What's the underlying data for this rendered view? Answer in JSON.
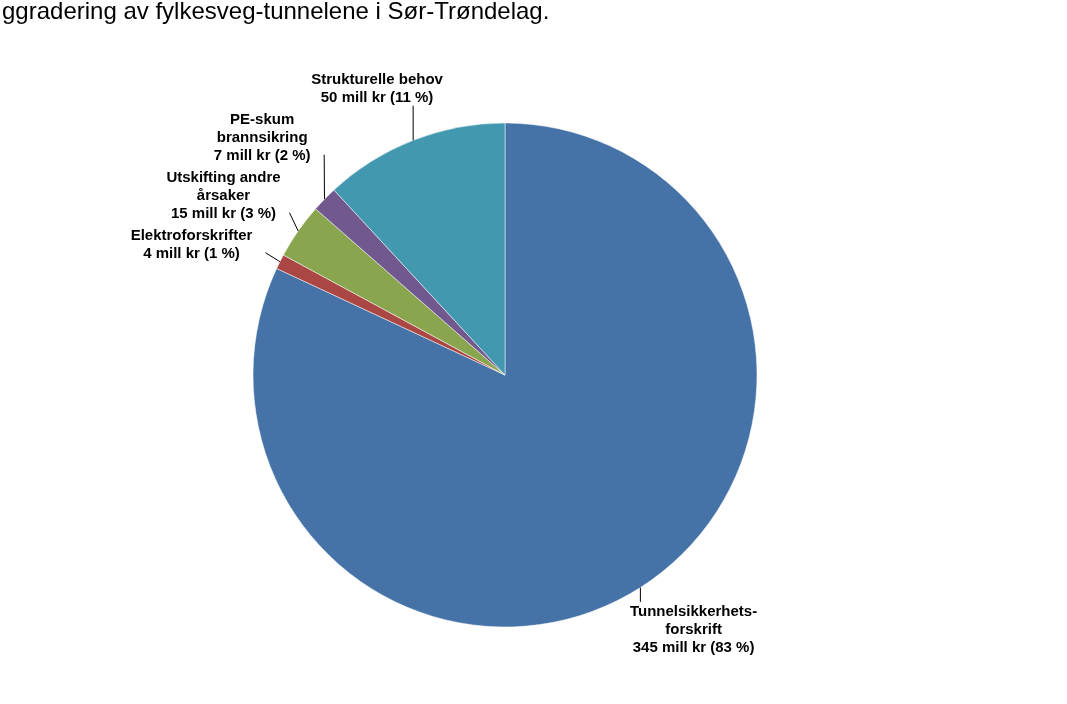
{
  "chart_data": {
    "type": "pie",
    "title": "ggradering av fylkesveg-tunnelene i Sør-Trøndelag.",
    "categories": [
      "Tunnelsikkerhets-forskrift",
      "Elektroforskrifter",
      "Utskifting andre årsaker",
      "PE-skum brannsikring",
      "Strukturelle behov"
    ],
    "values": [
      345,
      4,
      15,
      7,
      50
    ],
    "colors": [
      "#4572a7",
      "#aa4643",
      "#89a54e",
      "#71588f",
      "#4198af"
    ],
    "value_labels": [
      "345 mill kr (83 %)",
      "4 mill kr (1 %)",
      "15 mill kr (3 %)",
      "7 mill kr (2 %)",
      "50 mill kr (11 %)"
    ]
  }
}
